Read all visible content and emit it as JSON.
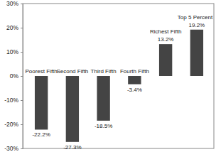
{
  "chart_data": {
    "type": "bar",
    "categories": [
      "Poorest Fifth",
      "Second Fifth",
      "Third Fifth",
      "Fourth Fifth",
      "Richest Fifth",
      "Top 5 Percent"
    ],
    "values": [
      -22.2,
      -27.3,
      -18.5,
      -3.4,
      13.2,
      19.2
    ],
    "value_labels": [
      "-22.2%",
      "-27.3%",
      "-18.5%",
      "-3.4%",
      "13.2%",
      "19.2%"
    ],
    "color": "#444444",
    "ylim": [
      -30,
      30
    ],
    "yticks": [
      {
        "value": -30,
        "label": "-30%"
      },
      {
        "value": -20,
        "label": "-20%"
      },
      {
        "value": -10,
        "label": "-10%"
      },
      {
        "value": 0,
        "label": "0%"
      },
      {
        "value": 10,
        "label": "10%"
      },
      {
        "value": 20,
        "label": "20%"
      },
      {
        "value": 30,
        "label": "30%"
      }
    ],
    "grid": false,
    "data_labels": true
  }
}
